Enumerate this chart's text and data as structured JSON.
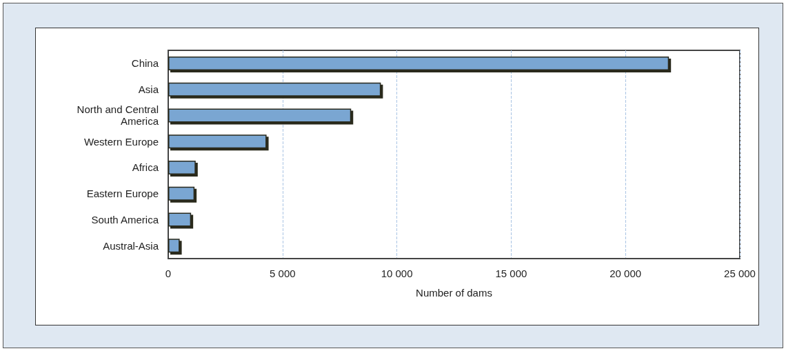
{
  "chart_data": {
    "type": "bar",
    "orientation": "horizontal",
    "xlabel": "Number of dams",
    "categories": [
      "China",
      "Asia",
      "North and Central America",
      "Western Europe",
      "Africa",
      "Eastern Europe",
      "South America",
      "Austral-Asia"
    ],
    "values": [
      21900,
      9300,
      8000,
      4300,
      1200,
      1150,
      1000,
      500
    ],
    "color": "#7aa6d2",
    "xlim": [
      0,
      25000
    ],
    "xticks": [
      0,
      {
        "value": 5000,
        "label": "5 000"
      },
      {
        "value": 10000,
        "label": "10 000"
      },
      {
        "value": 15000,
        "label": "15 000"
      },
      {
        "value": 20000,
        "label": "20 000"
      },
      {
        "value": 25000,
        "label": "25 000"
      }
    ],
    "grid": "x"
  }
}
